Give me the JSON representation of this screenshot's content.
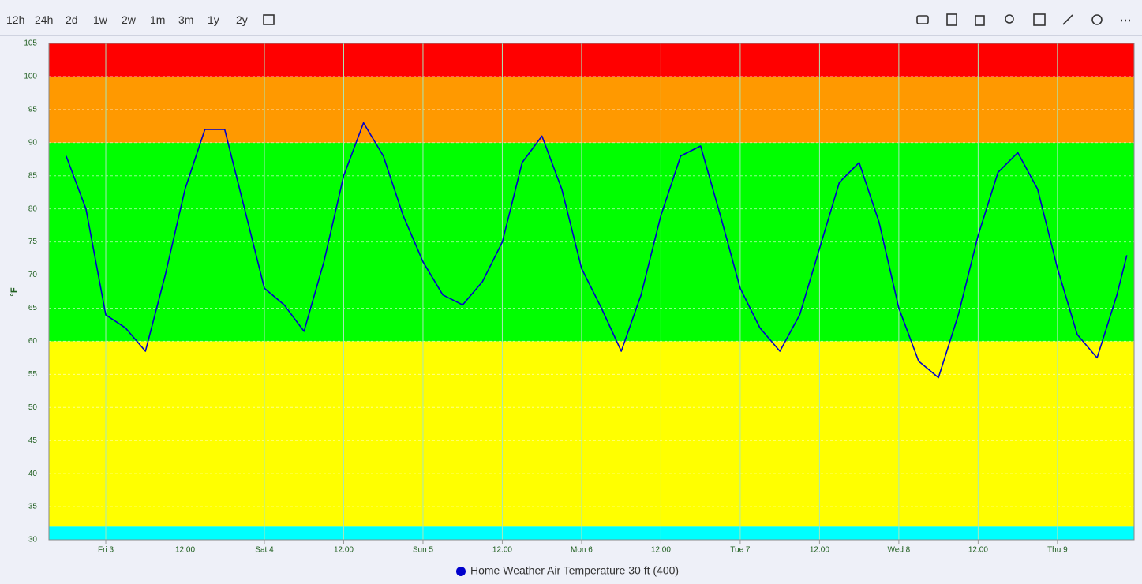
{
  "toolbar": {
    "ranges": [
      "12h",
      "24h",
      "2d",
      "1w",
      "2w",
      "1m",
      "3m",
      "1y",
      "2y"
    ]
  },
  "chart_data": {
    "type": "line",
    "y_label": "°F",
    "x": [
      "Thu 2 18:00",
      "Thu 2 21:00",
      "Fri 3 00:00",
      "Fri 3 03:00",
      "Fri 3 06:00",
      "Fri 3 09:00",
      "Fri 3 12:00",
      "Fri 3 15:00",
      "Fri 3 18:00",
      "Fri 3 21:00",
      "Sat 4 00:00",
      "Sat 4 03:00",
      "Sat 4 06:00",
      "Sat 4 09:00",
      "Sat 4 12:00",
      "Sat 4 15:00",
      "Sat 4 18:00",
      "Sat 4 21:00",
      "Sun 5 00:00",
      "Sun 5 03:00",
      "Sun 5 06:00",
      "Sun 5 09:00",
      "Sun 5 12:00",
      "Sun 5 15:00",
      "Sun 5 18:00",
      "Sun 5 21:00",
      "Mon 6 00:00",
      "Mon 6 03:00",
      "Mon 6 06:00",
      "Mon 6 09:00",
      "Mon 6 12:00",
      "Mon 6 15:00",
      "Mon 6 18:00",
      "Mon 6 21:00",
      "Tue 7 00:00",
      "Tue 7 03:00",
      "Tue 7 06:00",
      "Tue 7 09:00",
      "Tue 7 12:00",
      "Tue 7 15:00",
      "Tue 7 18:00",
      "Tue 7 21:00",
      "Wed 8 00:00",
      "Wed 8 03:00",
      "Wed 8 06:00",
      "Wed 8 09:00",
      "Wed 8 12:00",
      "Wed 8 15:00",
      "Wed 8 18:00",
      "Wed 8 21:00",
      "Thu 9 00:00",
      "Thu 9 03:00",
      "Thu 9 06:00",
      "Thu 9 09:00",
      "Thu 9 10:30"
    ],
    "series": [
      {
        "name": "Home Weather Air Temperature 30 ft (400)",
        "color": "#0000cc",
        "values": [
          88,
          80,
          64,
          62,
          58.5,
          70,
          83,
          92,
          92,
          80,
          68,
          65.5,
          61.5,
          72,
          85,
          93,
          88,
          79,
          72,
          67,
          65.5,
          69,
          75,
          87,
          91,
          83,
          71,
          65,
          58.5,
          67,
          79,
          88,
          89.5,
          79,
          68,
          62,
          58.5,
          64,
          74,
          84,
          87,
          78,
          65,
          57,
          54.5,
          64,
          76,
          85.5,
          88.5,
          83,
          71,
          61,
          57.5,
          67,
          73
        ]
      }
    ],
    "bands": [
      {
        "from": 30,
        "to": 32,
        "color": "#00ffff"
      },
      {
        "from": 32,
        "to": 60,
        "color": "#ffff00"
      },
      {
        "from": 60,
        "to": 90,
        "color": "#00ff00"
      },
      {
        "from": 90,
        "to": 100,
        "color": "#ff9900"
      },
      {
        "from": 100,
        "to": 105,
        "color": "#ff0000"
      }
    ],
    "xlim": [
      "Thu 2 15:24",
      "Thu 9 11:36"
    ],
    "xticks": [
      {
        "value": "Fri 3 00:00",
        "label": "Fri 3"
      },
      {
        "value": "Fri 3 12:00",
        "label": "12:00"
      },
      {
        "value": "Sat 4 00:00",
        "label": "Sat 4"
      },
      {
        "value": "Sat 4 12:00",
        "label": "12:00"
      },
      {
        "value": "Sun 5 00:00",
        "label": "Sun 5"
      },
      {
        "value": "Sun 5 12:00",
        "label": "12:00"
      },
      {
        "value": "Mon 6 00:00",
        "label": "Mon 6"
      },
      {
        "value": "Mon 6 12:00",
        "label": "12:00"
      },
      {
        "value": "Tue 7 00:00",
        "label": "Tue 7"
      },
      {
        "value": "Tue 7 12:00",
        "label": "12:00"
      },
      {
        "value": "Wed 8 00:00",
        "label": "Wed 8"
      },
      {
        "value": "Wed 8 12:00",
        "label": "12:00"
      },
      {
        "value": "Thu 9 00:00",
        "label": "Thu 9"
      }
    ],
    "ylim": [
      30,
      105
    ],
    "yticks": [
      30,
      35,
      40,
      45,
      50,
      55,
      60,
      65,
      70,
      75,
      80,
      85,
      90,
      95,
      100,
      105
    ],
    "grid": true
  }
}
